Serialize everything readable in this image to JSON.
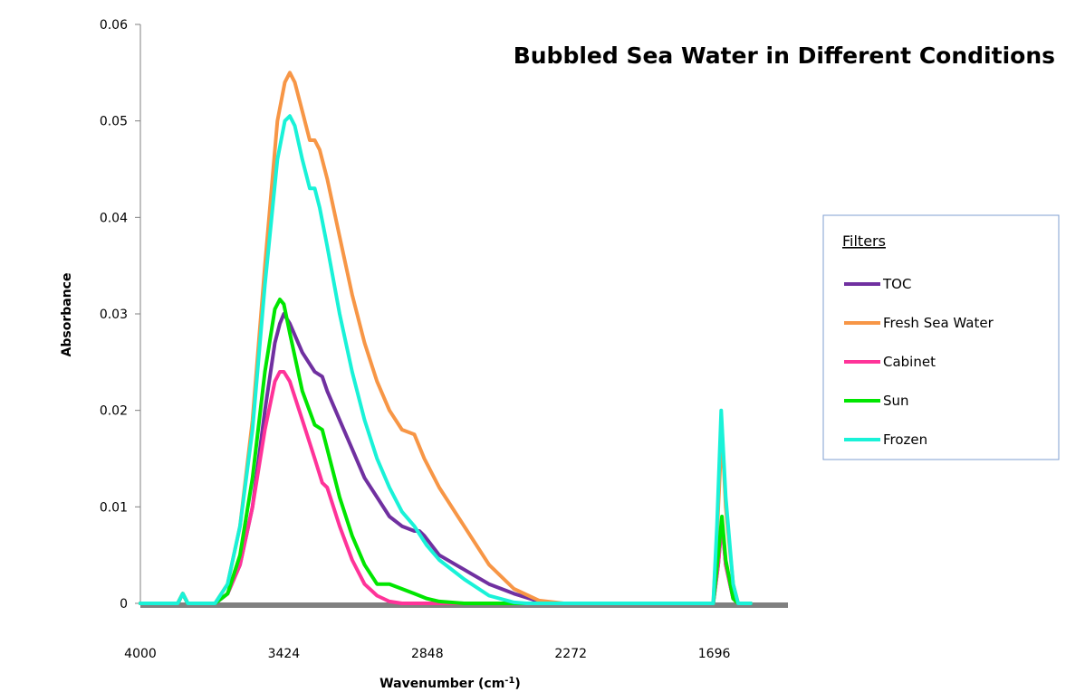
{
  "chart_data": {
    "type": "line",
    "title": "Bubbled Sea Water in Different Conditions",
    "xlabel": "Wavenumber (cm",
    "xlabel_sup": "-1",
    "xlabel_end": ")",
    "ylabel": "Absorbance",
    "xlim": [
      4000,
      1400
    ],
    "ylim": [
      0,
      0.06
    ],
    "x_ticks": [
      "4000",
      "3424",
      "2848",
      "2272",
      "1696"
    ],
    "x_tick_values": [
      4000,
      3424,
      2848,
      2272,
      1696
    ],
    "y_ticks": [
      "0",
      "0.01",
      "0.02",
      "0.03",
      "0.04",
      "0.05",
      "0.06"
    ],
    "y_tick_values": [
      0,
      0.01,
      0.02,
      0.03,
      0.04,
      0.05,
      0.06
    ],
    "grid": false,
    "legend": {
      "title": "Filters",
      "placement": "right"
    },
    "series": [
      {
        "name": "TOC",
        "color": "#7030a0",
        "x": [
          4000,
          3850,
          3830,
          3810,
          3800,
          3700,
          3650,
          3600,
          3550,
          3500,
          3460,
          3440,
          3424,
          3400,
          3350,
          3300,
          3270,
          3250,
          3200,
          3150,
          3100,
          3050,
          3000,
          2950,
          2900,
          2880,
          2860,
          2800,
          2700,
          2600,
          2500,
          2400,
          2350,
          1700,
          1680,
          1665,
          1650,
          1620,
          1600,
          1550
        ],
        "y": [
          0,
          0,
          0.001,
          0,
          0,
          0,
          0.001,
          0.004,
          0.01,
          0.02,
          0.027,
          0.029,
          0.03,
          0.029,
          0.026,
          0.024,
          0.0235,
          0.022,
          0.019,
          0.016,
          0.013,
          0.011,
          0.009,
          0.008,
          0.0075,
          0.0075,
          0.007,
          0.005,
          0.0035,
          0.002,
          0.001,
          0.0002,
          0,
          0,
          0.004,
          0.0085,
          0.004,
          0.0005,
          0,
          0
        ]
      },
      {
        "name": "Fresh Sea Water",
        "color": "#f79646",
        "x": [
          4000,
          3850,
          3830,
          3810,
          3800,
          3700,
          3650,
          3600,
          3550,
          3500,
          3450,
          3420,
          3400,
          3380,
          3350,
          3320,
          3300,
          3280,
          3250,
          3200,
          3150,
          3100,
          3050,
          3000,
          2950,
          2900,
          2860,
          2800,
          2700,
          2600,
          2500,
          2400,
          2300,
          2250,
          1700,
          1685,
          1665,
          1650,
          1620,
          1600,
          1550
        ],
        "y": [
          0,
          0,
          0.001,
          0,
          0,
          0,
          0.002,
          0.008,
          0.019,
          0.035,
          0.05,
          0.054,
          0.055,
          0.054,
          0.051,
          0.048,
          0.048,
          0.047,
          0.044,
          0.038,
          0.032,
          0.027,
          0.023,
          0.02,
          0.018,
          0.0175,
          0.015,
          0.012,
          0.008,
          0.004,
          0.0015,
          0.0003,
          0,
          0,
          0,
          0.007,
          0.018,
          0.01,
          0.002,
          0,
          0
        ]
      },
      {
        "name": "Cabinet",
        "color": "#ff3399",
        "x": [
          4000,
          3850,
          3830,
          3810,
          3800,
          3700,
          3650,
          3600,
          3550,
          3500,
          3460,
          3440,
          3424,
          3400,
          3350,
          3300,
          3270,
          3250,
          3200,
          3150,
          3100,
          3050,
          3000,
          2950,
          2900,
          1700,
          1680,
          1665,
          1650,
          1620,
          1600,
          1550
        ],
        "y": [
          0,
          0,
          0.001,
          0,
          0,
          0,
          0.001,
          0.004,
          0.01,
          0.018,
          0.023,
          0.024,
          0.024,
          0.023,
          0.019,
          0.015,
          0.0125,
          0.012,
          0.008,
          0.0045,
          0.002,
          0.0008,
          0.0002,
          0,
          0,
          0,
          0.004,
          0.0085,
          0.004,
          0.0005,
          0,
          0
        ]
      },
      {
        "name": "Sun",
        "color": "#00e600",
        "x": [
          4000,
          3850,
          3830,
          3810,
          3800,
          3700,
          3650,
          3600,
          3550,
          3500,
          3460,
          3440,
          3424,
          3400,
          3350,
          3300,
          3270,
          3250,
          3200,
          3150,
          3100,
          3050,
          3000,
          2950,
          2900,
          2850,
          2800,
          2700,
          2600,
          1700,
          1680,
          1665,
          1650,
          1620,
          1600,
          1550
        ],
        "y": [
          0,
          0,
          0.001,
          0,
          0,
          0,
          0.001,
          0.005,
          0.013,
          0.024,
          0.0305,
          0.0315,
          0.031,
          0.028,
          0.022,
          0.0185,
          0.018,
          0.016,
          0.011,
          0.007,
          0.004,
          0.002,
          0.002,
          0.0015,
          0.001,
          0.0005,
          0.0002,
          0,
          0,
          0,
          0.005,
          0.009,
          0.0045,
          0.0005,
          0,
          0
        ]
      },
      {
        "name": "Frozen",
        "color": "#19f2d8",
        "x": [
          4000,
          3850,
          3830,
          3810,
          3800,
          3700,
          3650,
          3600,
          3550,
          3500,
          3450,
          3420,
          3400,
          3380,
          3350,
          3320,
          3300,
          3280,
          3250,
          3200,
          3150,
          3100,
          3050,
          3000,
          2950,
          2900,
          2850,
          2800,
          2700,
          2600,
          2500,
          2450,
          2400,
          1700,
          1685,
          1668,
          1650,
          1620,
          1600,
          1550
        ],
        "y": [
          0,
          0,
          0.001,
          0,
          0,
          0,
          0.002,
          0.008,
          0.018,
          0.033,
          0.046,
          0.05,
          0.0505,
          0.0495,
          0.046,
          0.043,
          0.043,
          0.041,
          0.037,
          0.03,
          0.024,
          0.019,
          0.015,
          0.012,
          0.0095,
          0.008,
          0.006,
          0.0045,
          0.0025,
          0.0008,
          0.0001,
          0,
          0,
          0,
          0.008,
          0.02,
          0.011,
          0.002,
          0,
          0
        ]
      }
    ]
  }
}
